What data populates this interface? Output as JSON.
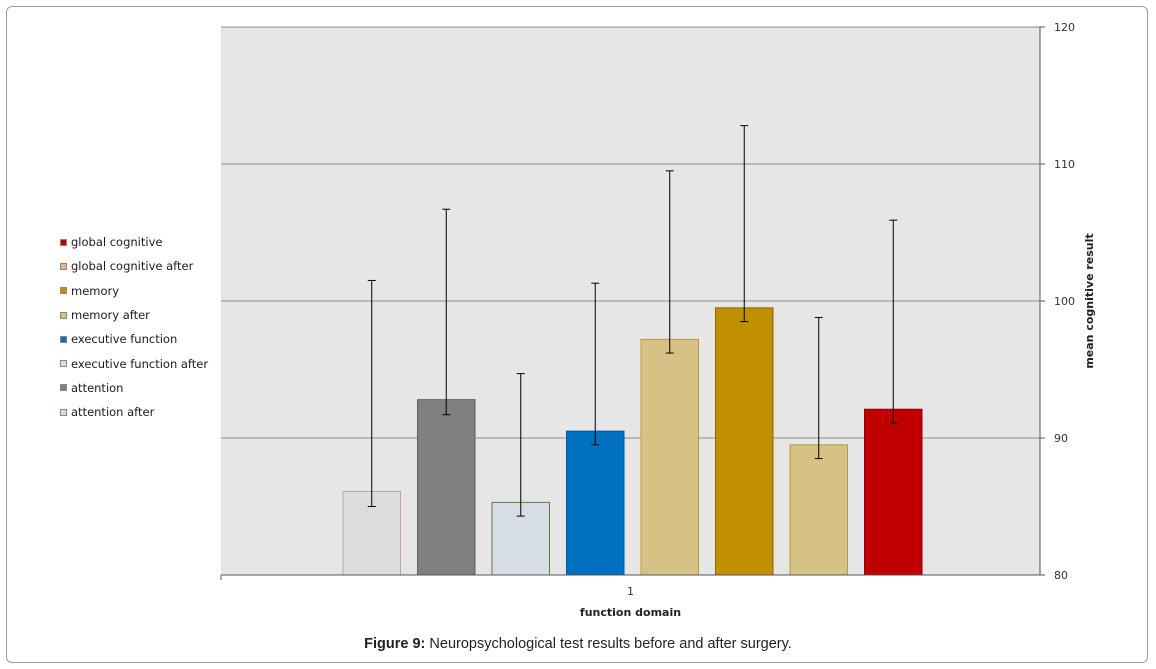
{
  "chart_data": {
    "type": "bar",
    "categories": [
      "1"
    ],
    "xlabel": "function domain",
    "ylabel": "mean cognitive result",
    "ylim": [
      80,
      120
    ],
    "yticks": [
      80,
      90,
      100,
      110,
      120
    ],
    "grid": true,
    "legend_position": "left",
    "series": [
      {
        "name": "attention after",
        "value": 86.1,
        "err_low": 85.0,
        "err_high": 101.5,
        "color": "#dcdcdc",
        "edge": "#c9a09a"
      },
      {
        "name": "attention",
        "value": 92.8,
        "err_low": 91.7,
        "err_high": 106.7,
        "color": "#808080",
        "edge": "#606060"
      },
      {
        "name": "executive function after",
        "value": 85.3,
        "err_low": 84.3,
        "err_high": 94.7,
        "color": "#d6dde6",
        "edge": "#5a7a3a"
      },
      {
        "name": "executive function",
        "value": 90.5,
        "err_low": 89.5,
        "err_high": 101.3,
        "color": "#0070c0",
        "edge": "#005a9a"
      },
      {
        "name": "memory after",
        "value": 97.2,
        "err_low": 96.2,
        "err_high": 109.5,
        "color": "#d6c285",
        "edge": "#b59a40"
      },
      {
        "name": "memory",
        "value": 99.5,
        "err_low": 98.5,
        "err_high": 112.8,
        "color": "#c09000",
        "edge": "#8a6800"
      },
      {
        "name": "global cognitive after",
        "value": 89.5,
        "err_low": 88.5,
        "err_high": 98.8,
        "color": "#d6c285",
        "edge": "#b59a40"
      },
      {
        "name": "global cognitive",
        "value": 92.1,
        "err_low": 91.1,
        "err_high": 105.9,
        "color": "#c00000",
        "edge": "#900000"
      }
    ],
    "legend": [
      {
        "name": "global cognitive",
        "color": "#c00000"
      },
      {
        "name": "global cognitive after",
        "color": "#f0b080"
      },
      {
        "name": "memory",
        "color": "#c09000"
      },
      {
        "name": "memory after",
        "color": "#e0c070"
      },
      {
        "name": "executive function",
        "color": "#0070c0"
      },
      {
        "name": "executive function after",
        "color": "#d0e8d0"
      },
      {
        "name": "attention",
        "color": "#808080"
      },
      {
        "name": "attention after",
        "color": "#f0d0d0"
      }
    ]
  },
  "caption": {
    "label": "Figure 9:",
    "text": " Neuropsychological test results before and after surgery."
  }
}
